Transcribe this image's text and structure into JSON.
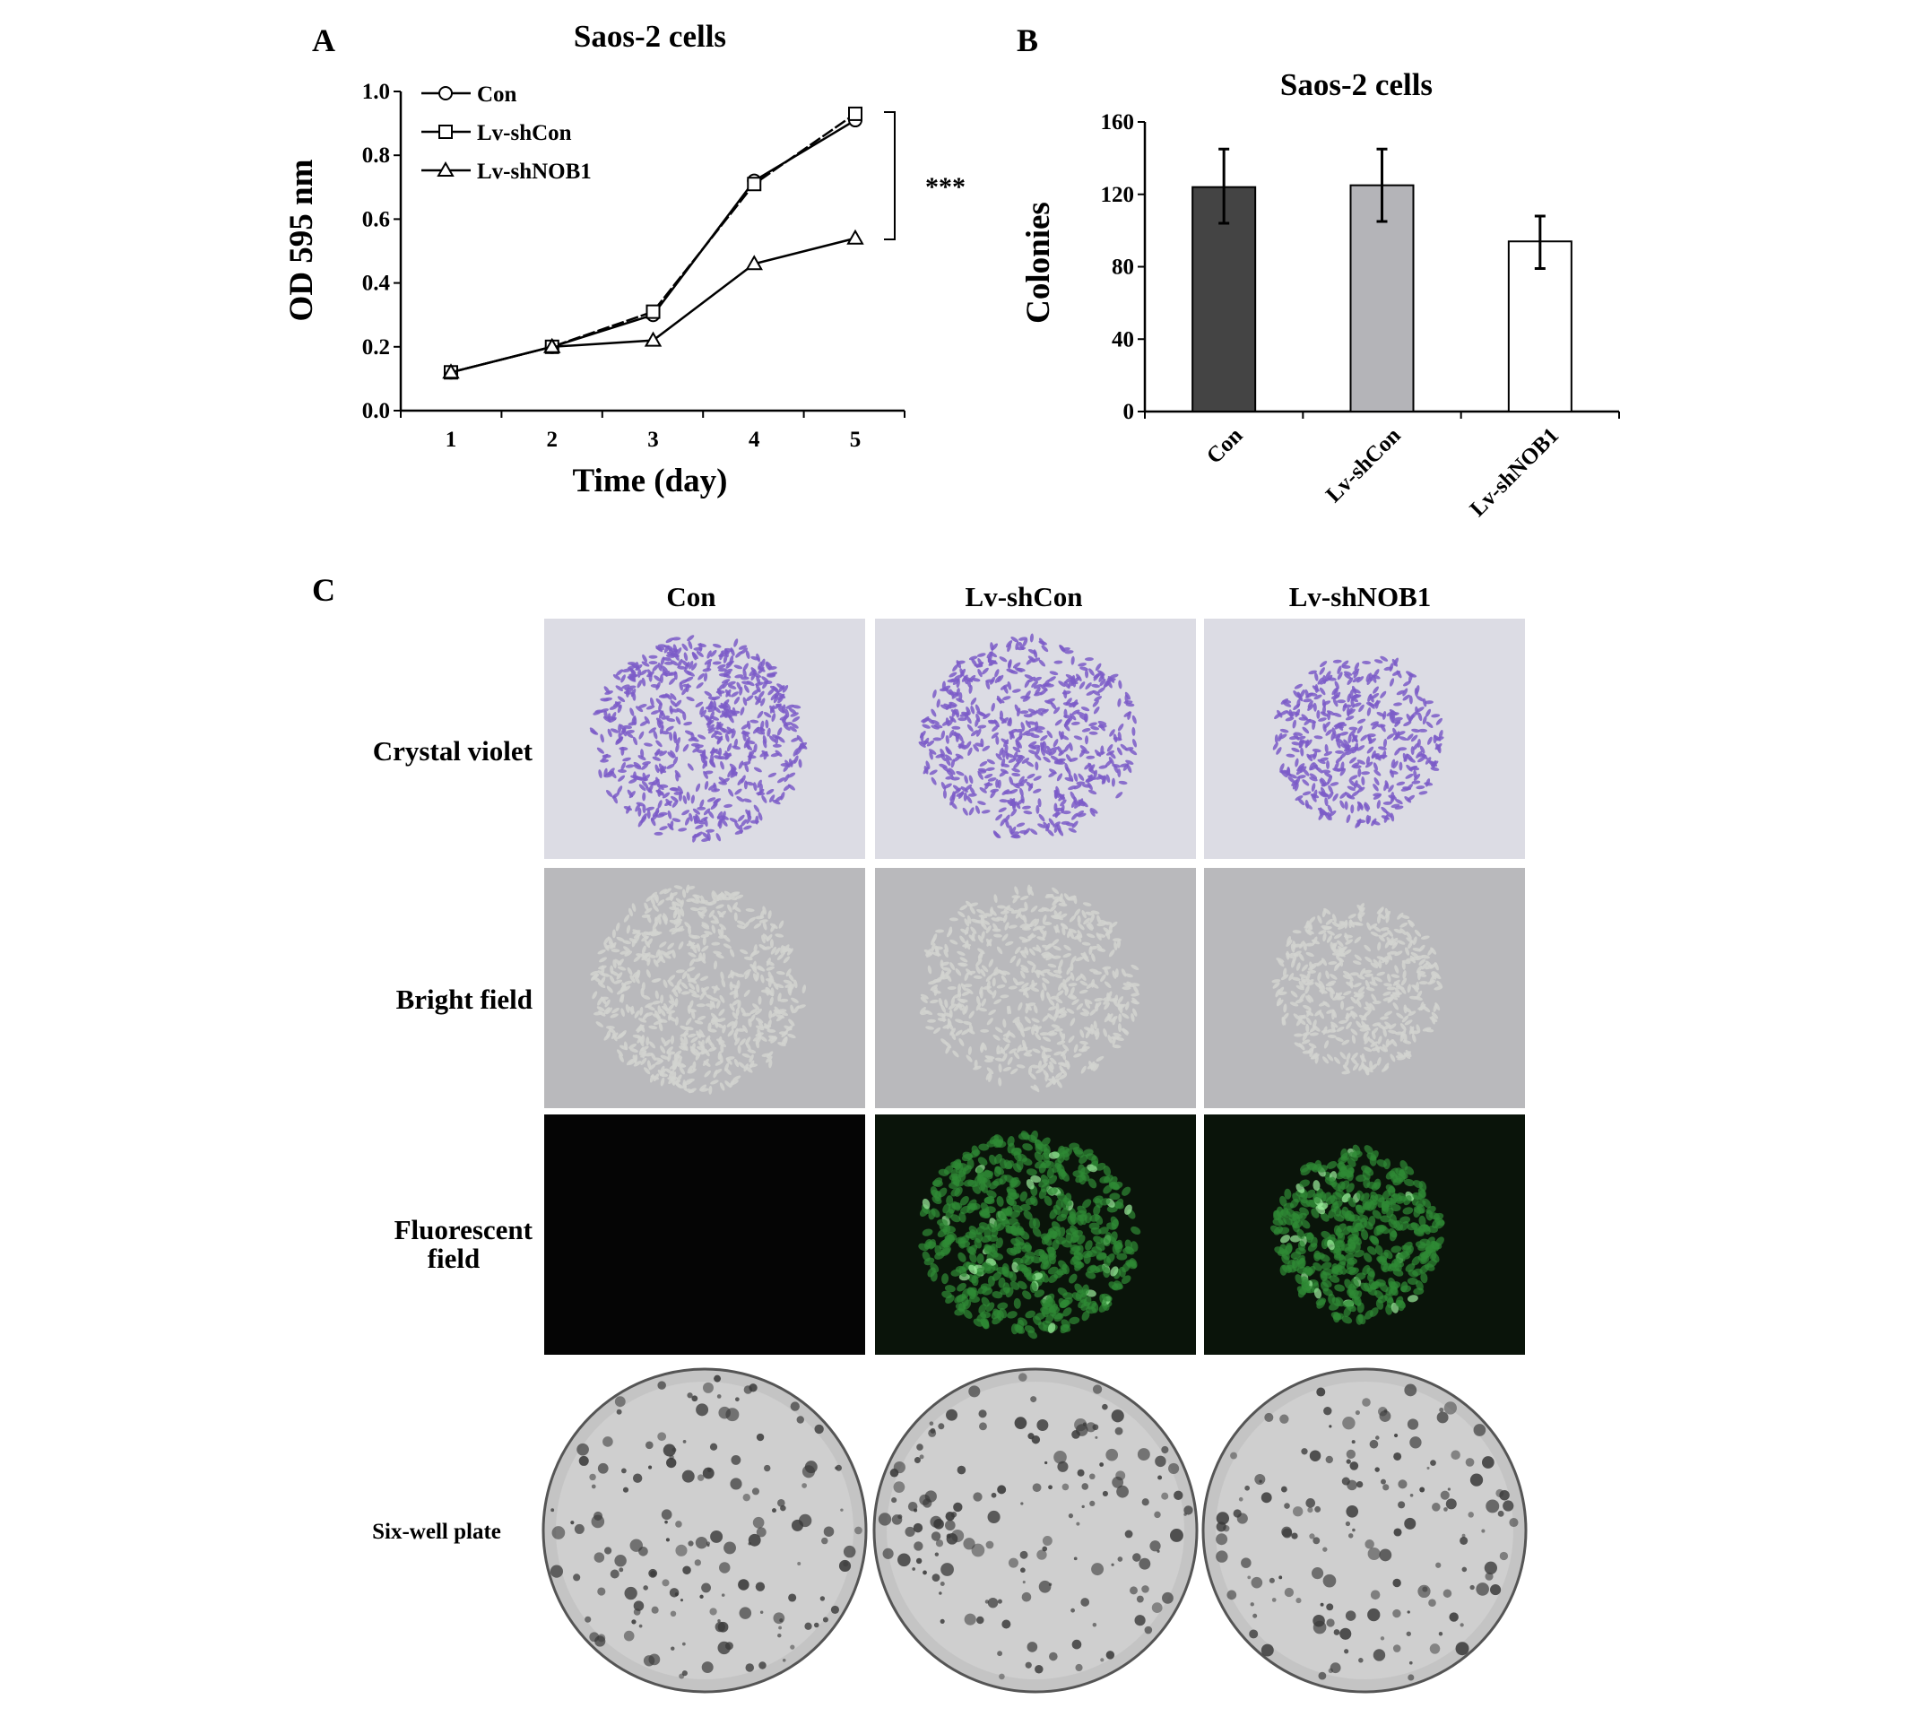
{
  "panel_labels": {
    "a": "A",
    "b": "B",
    "c": "C"
  },
  "chart_data": [
    {
      "type": "line",
      "title": "Saos-2 cells",
      "xlabel": "Time (day)",
      "ylabel": "OD 595 nm",
      "x": [
        1,
        2,
        3,
        4,
        5
      ],
      "x_tick_labels": [
        "1",
        "2",
        "3",
        "4",
        "5"
      ],
      "ylim": [
        0,
        1.0
      ],
      "y_ticks": [
        "0.0",
        "0.2",
        "0.4",
        "0.6",
        "0.8",
        "1.0"
      ],
      "legend_position": "top-left",
      "grid": false,
      "significance": "***",
      "series": [
        {
          "name": "Con",
          "marker": "circle",
          "values": [
            0.12,
            0.2,
            0.3,
            0.72,
            0.91
          ]
        },
        {
          "name": "Lv-shCon",
          "marker": "square",
          "values": [
            0.12,
            0.2,
            0.31,
            0.71,
            0.93
          ]
        },
        {
          "name": "Lv-shNOB1",
          "marker": "triangle",
          "values": [
            0.12,
            0.2,
            0.22,
            0.46,
            0.54
          ]
        }
      ]
    },
    {
      "type": "bar",
      "title": "Saos-2 cells",
      "xlabel": "",
      "ylabel": "Colonies",
      "categories": [
        "Con",
        "Lv-shCon",
        "Lv-shNOB1"
      ],
      "values": [
        124,
        125,
        94
      ],
      "error_low": [
        104,
        105,
        79
      ],
      "error_high": [
        145,
        145,
        108
      ],
      "colors": [
        "#444444",
        "#b4b4b8",
        "#ffffff"
      ],
      "ylim": [
        0,
        160
      ],
      "y_ticks": [
        "0",
        "40",
        "80",
        "120",
        "160"
      ],
      "grid": false
    }
  ],
  "panel_c": {
    "columns": [
      "Con",
      "Lv-shCon",
      "Lv-shNOB1"
    ],
    "rows": {
      "crystal": "Crystal violet",
      "bright": "Bright field",
      "fluor_1": "Fluorescent",
      "fluor_2": "field",
      "plate": "Six-well plate"
    }
  }
}
